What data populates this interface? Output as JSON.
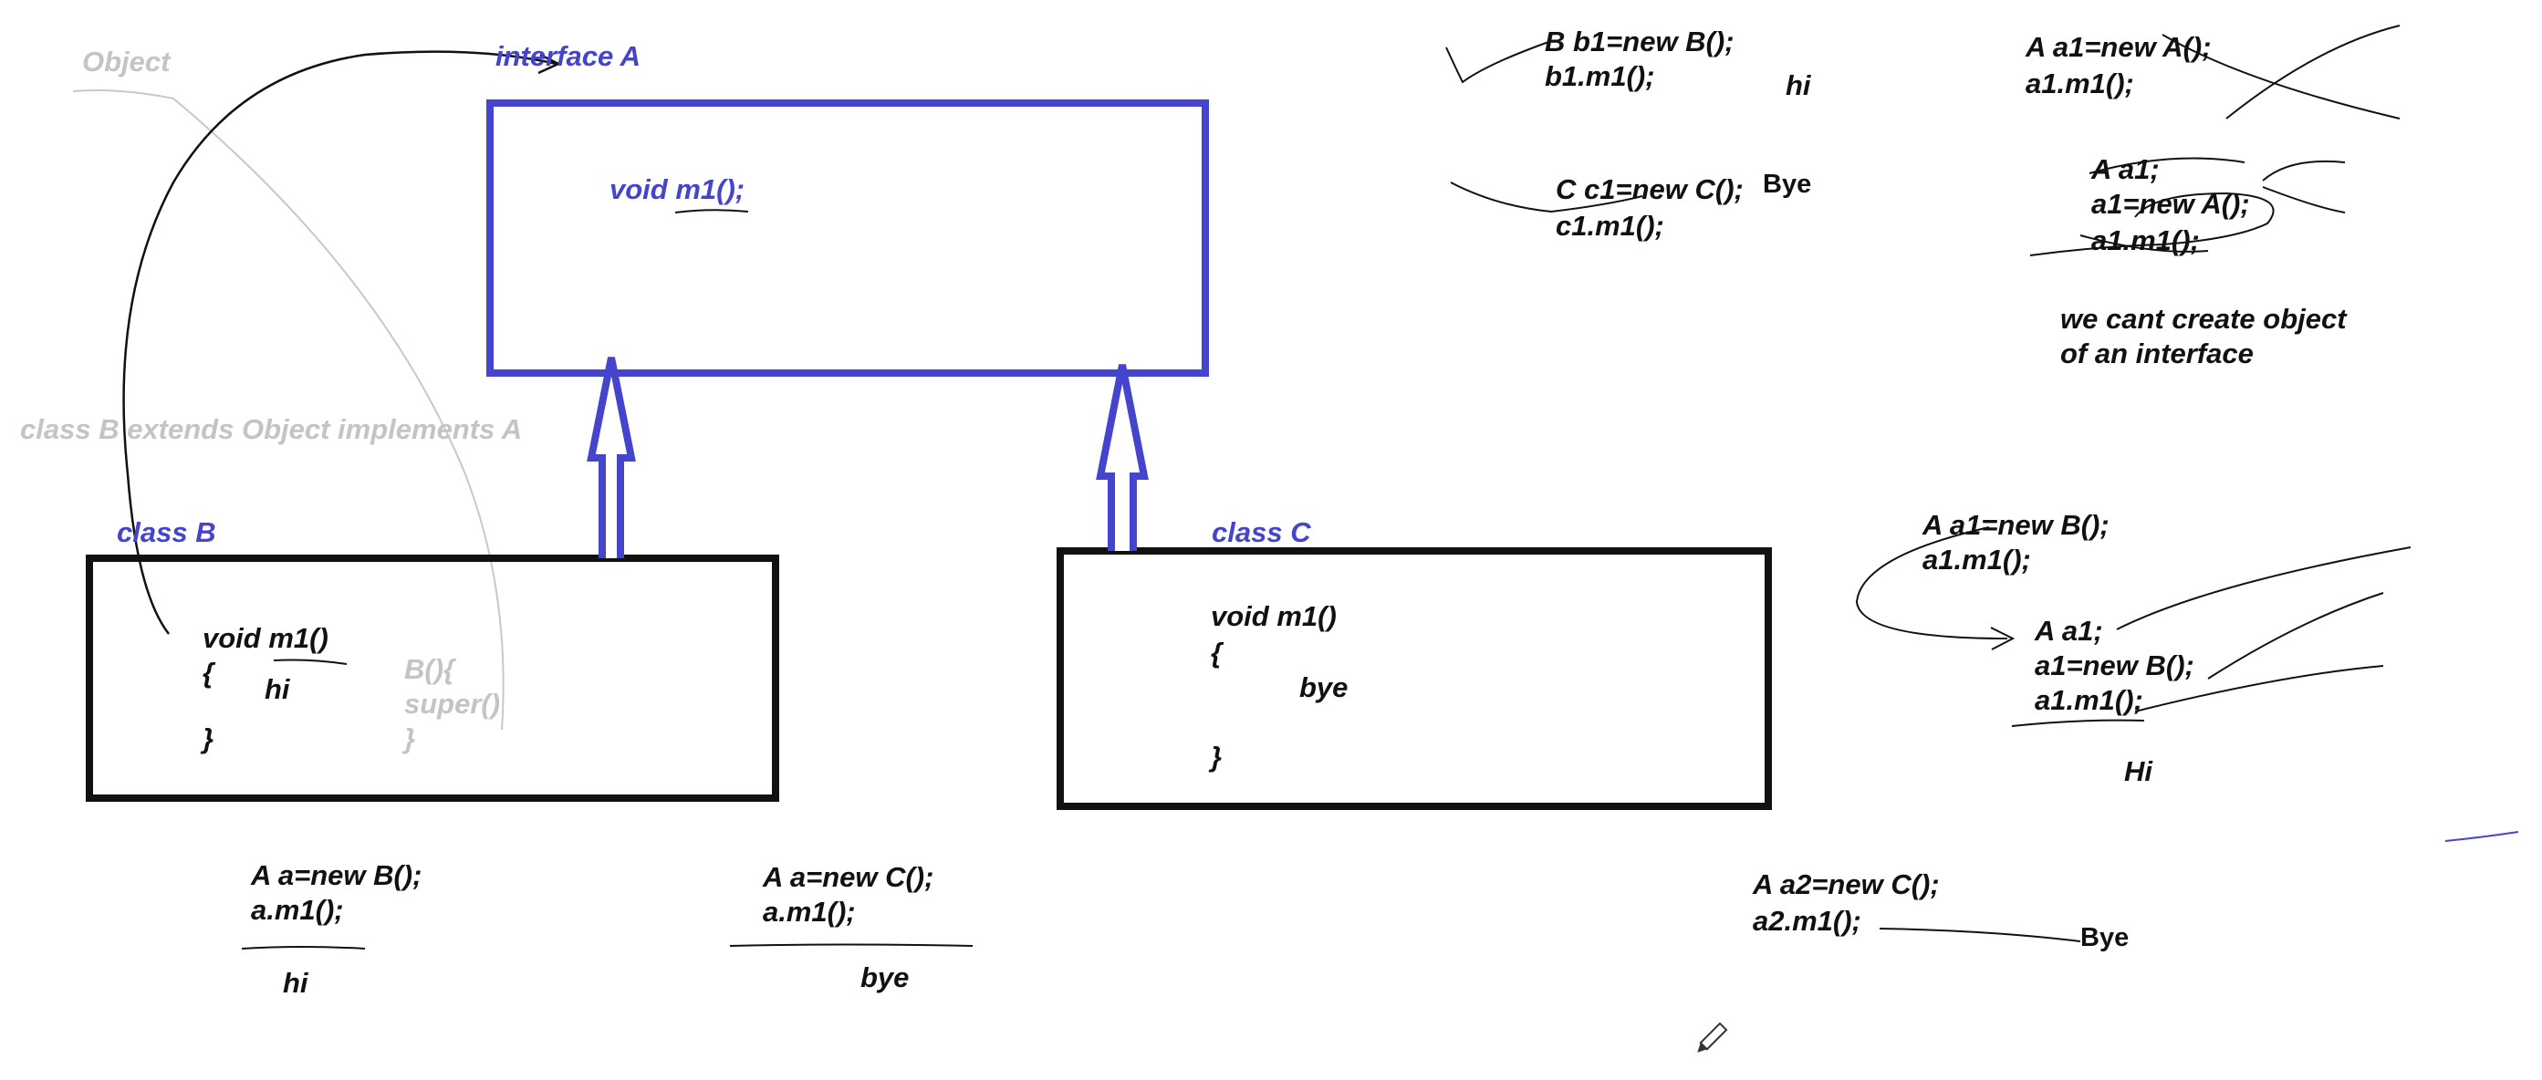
{
  "colors": {
    "blue": "#4444cc",
    "black": "#111111",
    "gray": "#c4c4c4",
    "background": "#ffffff"
  },
  "icons": [
    "pencil-icon"
  ],
  "labels": {
    "object": "Object",
    "interface_a": "interface A",
    "interface_method": "void m1();",
    "class_b_extends": "class B extends Object implements A",
    "class_b": "class B",
    "class_c": "class C",
    "b_method": "void m1()",
    "b_open": "{",
    "b_hi": "hi",
    "b_close": "}",
    "b_ctor": "B(){",
    "b_super": "super()",
    "b_ctor_close": "}",
    "c_method": "void m1()",
    "c_open": "{",
    "c_bye": "bye",
    "c_close": "}"
  },
  "snippets": {
    "a_new_b_1": "A a=new B();",
    "a_new_b_2": "a.m1();",
    "a_new_b_out": "hi",
    "a_new_c_1": "A a=new C();",
    "a_new_c_2": "a.m1();",
    "a_new_c_out": "bye",
    "b1_1": "B b1=new B();",
    "b1_2": "b1.m1();",
    "b1_out": "hi",
    "c1_1": "C c1=new C();",
    "c1_2": "c1.m1();",
    "c1_out": "Bye",
    "a1_new_a_1": "A a1=new A();",
    "a1_new_a_2": "a1.m1();",
    "a1_decl": "A a1;",
    "a1_assign_a": "a1=new A();",
    "a1_call_a": "a1.m1();",
    "no_object_1": "we cant create object",
    "no_object_2": "of an interface",
    "a1_new_b_1": "A a1=new B();",
    "a1_new_b_2": "a1.m1();",
    "a1_decl_b": "A a1;",
    "a1_assign_b": "a1=new B();",
    "a1_call_b": "a1.m1();",
    "a1_out": "Hi",
    "a2_1": "A a2=new C();",
    "a2_2": "a2.m1();",
    "a2_out": "Bye"
  }
}
